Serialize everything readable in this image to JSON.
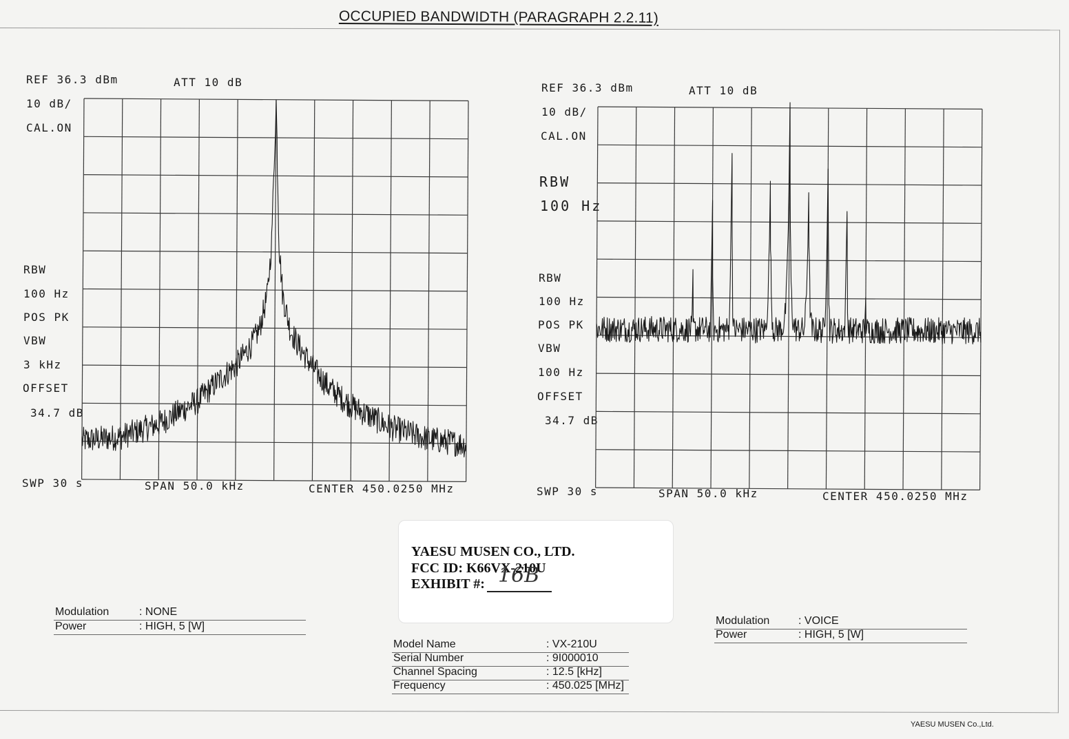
{
  "title": "OCCUPIED BANDWIDTH (PARAGRAPH 2.2.11)",
  "chart_data": [
    {
      "type": "line",
      "title": "",
      "xlabel": "",
      "ylabel": "",
      "x_unit": "kHz offset from center",
      "xlim": [
        -25,
        25
      ],
      "ylim": [
        -63.7,
        36.3
      ],
      "grid": true,
      "annotations": {
        "ref": "REF  36.3 dBm",
        "att": "ATT 10 dB",
        "scale": "10 dB/",
        "cal": "CAL.ON",
        "rbw": "RBW",
        "rbw_val": "100 Hz",
        "det": "POS PK",
        "vbw": "VBW",
        "vbw_val": "3 kHz",
        "offset": "OFFSET",
        "offset_val": "34.7 dB",
        "swp": "SWP 30 s",
        "span": "SPAN 50.0 kHz",
        "center": "CENTER 450.0250 MHz"
      },
      "series": [
        {
          "color": "#1a1a1a",
          "x": [
            -25,
            -20,
            -15,
            -10,
            -7,
            -5,
            -3,
            -2,
            -1,
            -0.5,
            0,
            0.5,
            1,
            2,
            3,
            5,
            7,
            10,
            15,
            20,
            25
          ],
          "y": [
            -53.5,
            -52.5,
            -49,
            -43,
            -37,
            -33.5,
            -28,
            -24,
            -15,
            -2,
            35.5,
            -2,
            -15,
            -24,
            -28,
            -34,
            -39,
            -44,
            -49.5,
            -52.5,
            -54
          ]
        }
      ]
    },
    {
      "type": "line",
      "title": "",
      "xlabel": "",
      "ylabel": "",
      "x_unit": "kHz offset from center",
      "xlim": [
        -25,
        25
      ],
      "ylim": [
        -63.7,
        36.3
      ],
      "grid": true,
      "annotations": {
        "ref": "REF  36.3 dBm",
        "att": "ATT 10 dB",
        "scale": "10 dB/",
        "cal": "CAL.ON",
        "big_rbw": "RBW",
        "big_rbw_val": "100 Hz",
        "rbw": "RBW",
        "rbw_val": "100 Hz",
        "det": "POS PK",
        "vbw": "VBW",
        "vbw_val": "100 Hz",
        "offset": "OFFSET",
        "offset_val": "34.7 dB",
        "swp": "SWP 30 s",
        "span": "SPAN 50.0 kHz",
        "center": "CENTER 450.0250 MHz"
      },
      "series": [
        {
          "color": "#1a1a1a",
          "x": [
            -25,
            -20,
            -15,
            -11,
            -10,
            -7.5,
            -5,
            -2.5,
            0,
            2.5,
            5,
            7.5,
            10,
            11,
            15,
            20,
            25
          ],
          "y": [
            -53,
            -51.5,
            -46.5,
            -43,
            -40,
            -34,
            -27,
            -24,
            -22,
            -24,
            -29,
            -35,
            -41,
            -44,
            -48,
            -51.5,
            -54
          ]
        }
      ],
      "peaks": [
        {
          "x": -12.5,
          "y": -9.5
        },
        {
          "x": -10,
          "y": 11
        },
        {
          "x": -7.5,
          "y": 24.5
        },
        {
          "x": -2.5,
          "y": 14.5
        },
        {
          "x": 0,
          "y": 36
        },
        {
          "x": 2.5,
          "y": 14.5
        },
        {
          "x": 5,
          "y": 23
        },
        {
          "x": 7.5,
          "y": 10.5
        },
        {
          "x": 10,
          "y": -11
        }
      ]
    }
  ],
  "stamp": {
    "company": "YAESU MUSEN CO., LTD.",
    "fcc": "FCC ID: K66VX-210U",
    "exhibit_label": "EXHIBIT #:",
    "exhibit_value": "16B"
  },
  "left_info": [
    {
      "k": "Modulation",
      "v": ": NONE"
    },
    {
      "k": "Power",
      "v": ": HIGH, 5 [W]"
    }
  ],
  "right_info": [
    {
      "k": "Modulation",
      "v": ": VOICE"
    },
    {
      "k": "Power",
      "v": ": HIGH, 5 [W]"
    }
  ],
  "center_info": [
    {
      "k": "Model Name",
      "v": ": VX-210U"
    },
    {
      "k": "Serial Number",
      "v": ": 9I000010"
    },
    {
      "k": "Channel Spacing",
      "v": ": 12.5 [kHz]"
    },
    {
      "k": "Frequency",
      "v": ": 450.025 [MHz]"
    }
  ],
  "footer": "YAESU MUSEN Co.,Ltd."
}
